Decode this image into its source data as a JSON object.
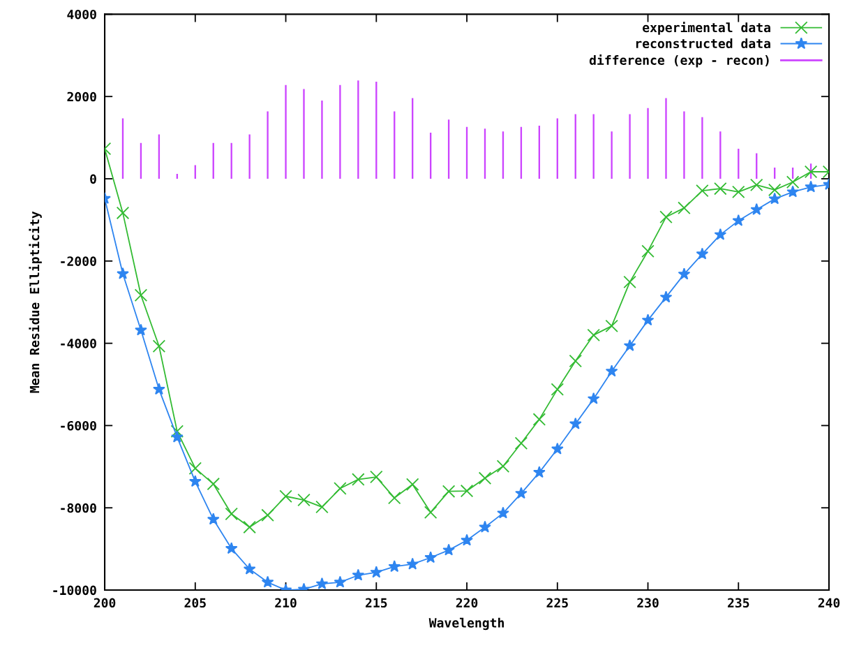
{
  "chart_data": {
    "type": "line",
    "xlabel": "Wavelength",
    "ylabel": "Mean Residue Ellipticity",
    "x": [
      200,
      201,
      202,
      203,
      204,
      205,
      206,
      207,
      208,
      209,
      210,
      211,
      212,
      213,
      214,
      215,
      216,
      217,
      218,
      219,
      220,
      221,
      222,
      223,
      224,
      225,
      226,
      227,
      228,
      229,
      230,
      231,
      232,
      233,
      234,
      235,
      236,
      237,
      238,
      239,
      240
    ],
    "series": [
      {
        "name": "experimental data",
        "color": "#33bb33",
        "marker": "cross",
        "values": [
          730,
          -830,
          -2830,
          -4070,
          -6140,
          -7040,
          -7420,
          -8150,
          -8470,
          -8180,
          -7720,
          -7810,
          -7980,
          -7530,
          -7310,
          -7250,
          -7760,
          -7430,
          -8110,
          -7600,
          -7590,
          -7280,
          -6990,
          -6430,
          -5850,
          -5120,
          -4430,
          -3800,
          -3580,
          -2510,
          -1760,
          -930,
          -710,
          -290,
          -240,
          -320,
          -150,
          -270,
          -80,
          170,
          170
        ]
      },
      {
        "name": "reconstructed data",
        "color": "#2e85f0",
        "marker": "star",
        "values": [
          -480,
          -2310,
          -3680,
          -5120,
          -6280,
          -7360,
          -8280,
          -8990,
          -9490,
          -9810,
          -10000,
          -9980,
          -9850,
          -9810,
          -9640,
          -9570,
          -9430,
          -9370,
          -9210,
          -9030,
          -8790,
          -8470,
          -8130,
          -7650,
          -7140,
          -6570,
          -5960,
          -5350,
          -4680,
          -4060,
          -3440,
          -2880,
          -2320,
          -1830,
          -1360,
          -1020,
          -750,
          -490,
          -320,
          -200,
          -140
        ]
      },
      {
        "name": "difference (exp - recon)",
        "type": "bar",
        "color": "#cc44ff",
        "values": [
          null,
          1470,
          870,
          1080,
          120,
          330,
          870,
          870,
          1080,
          1640,
          2280,
          2180,
          1900,
          2280,
          2390,
          2360,
          1640,
          1960,
          1120,
          1440,
          1260,
          1220,
          1150,
          1260,
          1290,
          1470,
          1570,
          1570,
          1150,
          1570,
          1720,
          1960,
          1640,
          1500,
          1150,
          730,
          620,
          270,
          270,
          370,
          null
        ]
      }
    ],
    "xlim": [
      200,
      240
    ],
    "xticks": [
      200,
      205,
      210,
      215,
      220,
      225,
      230,
      235,
      240
    ],
    "ylim": [
      -10000,
      4000
    ],
    "yticks": [
      -10000,
      -8000,
      -6000,
      -4000,
      -2000,
      0,
      2000,
      4000
    ],
    "legend": "top right",
    "grid": false
  }
}
